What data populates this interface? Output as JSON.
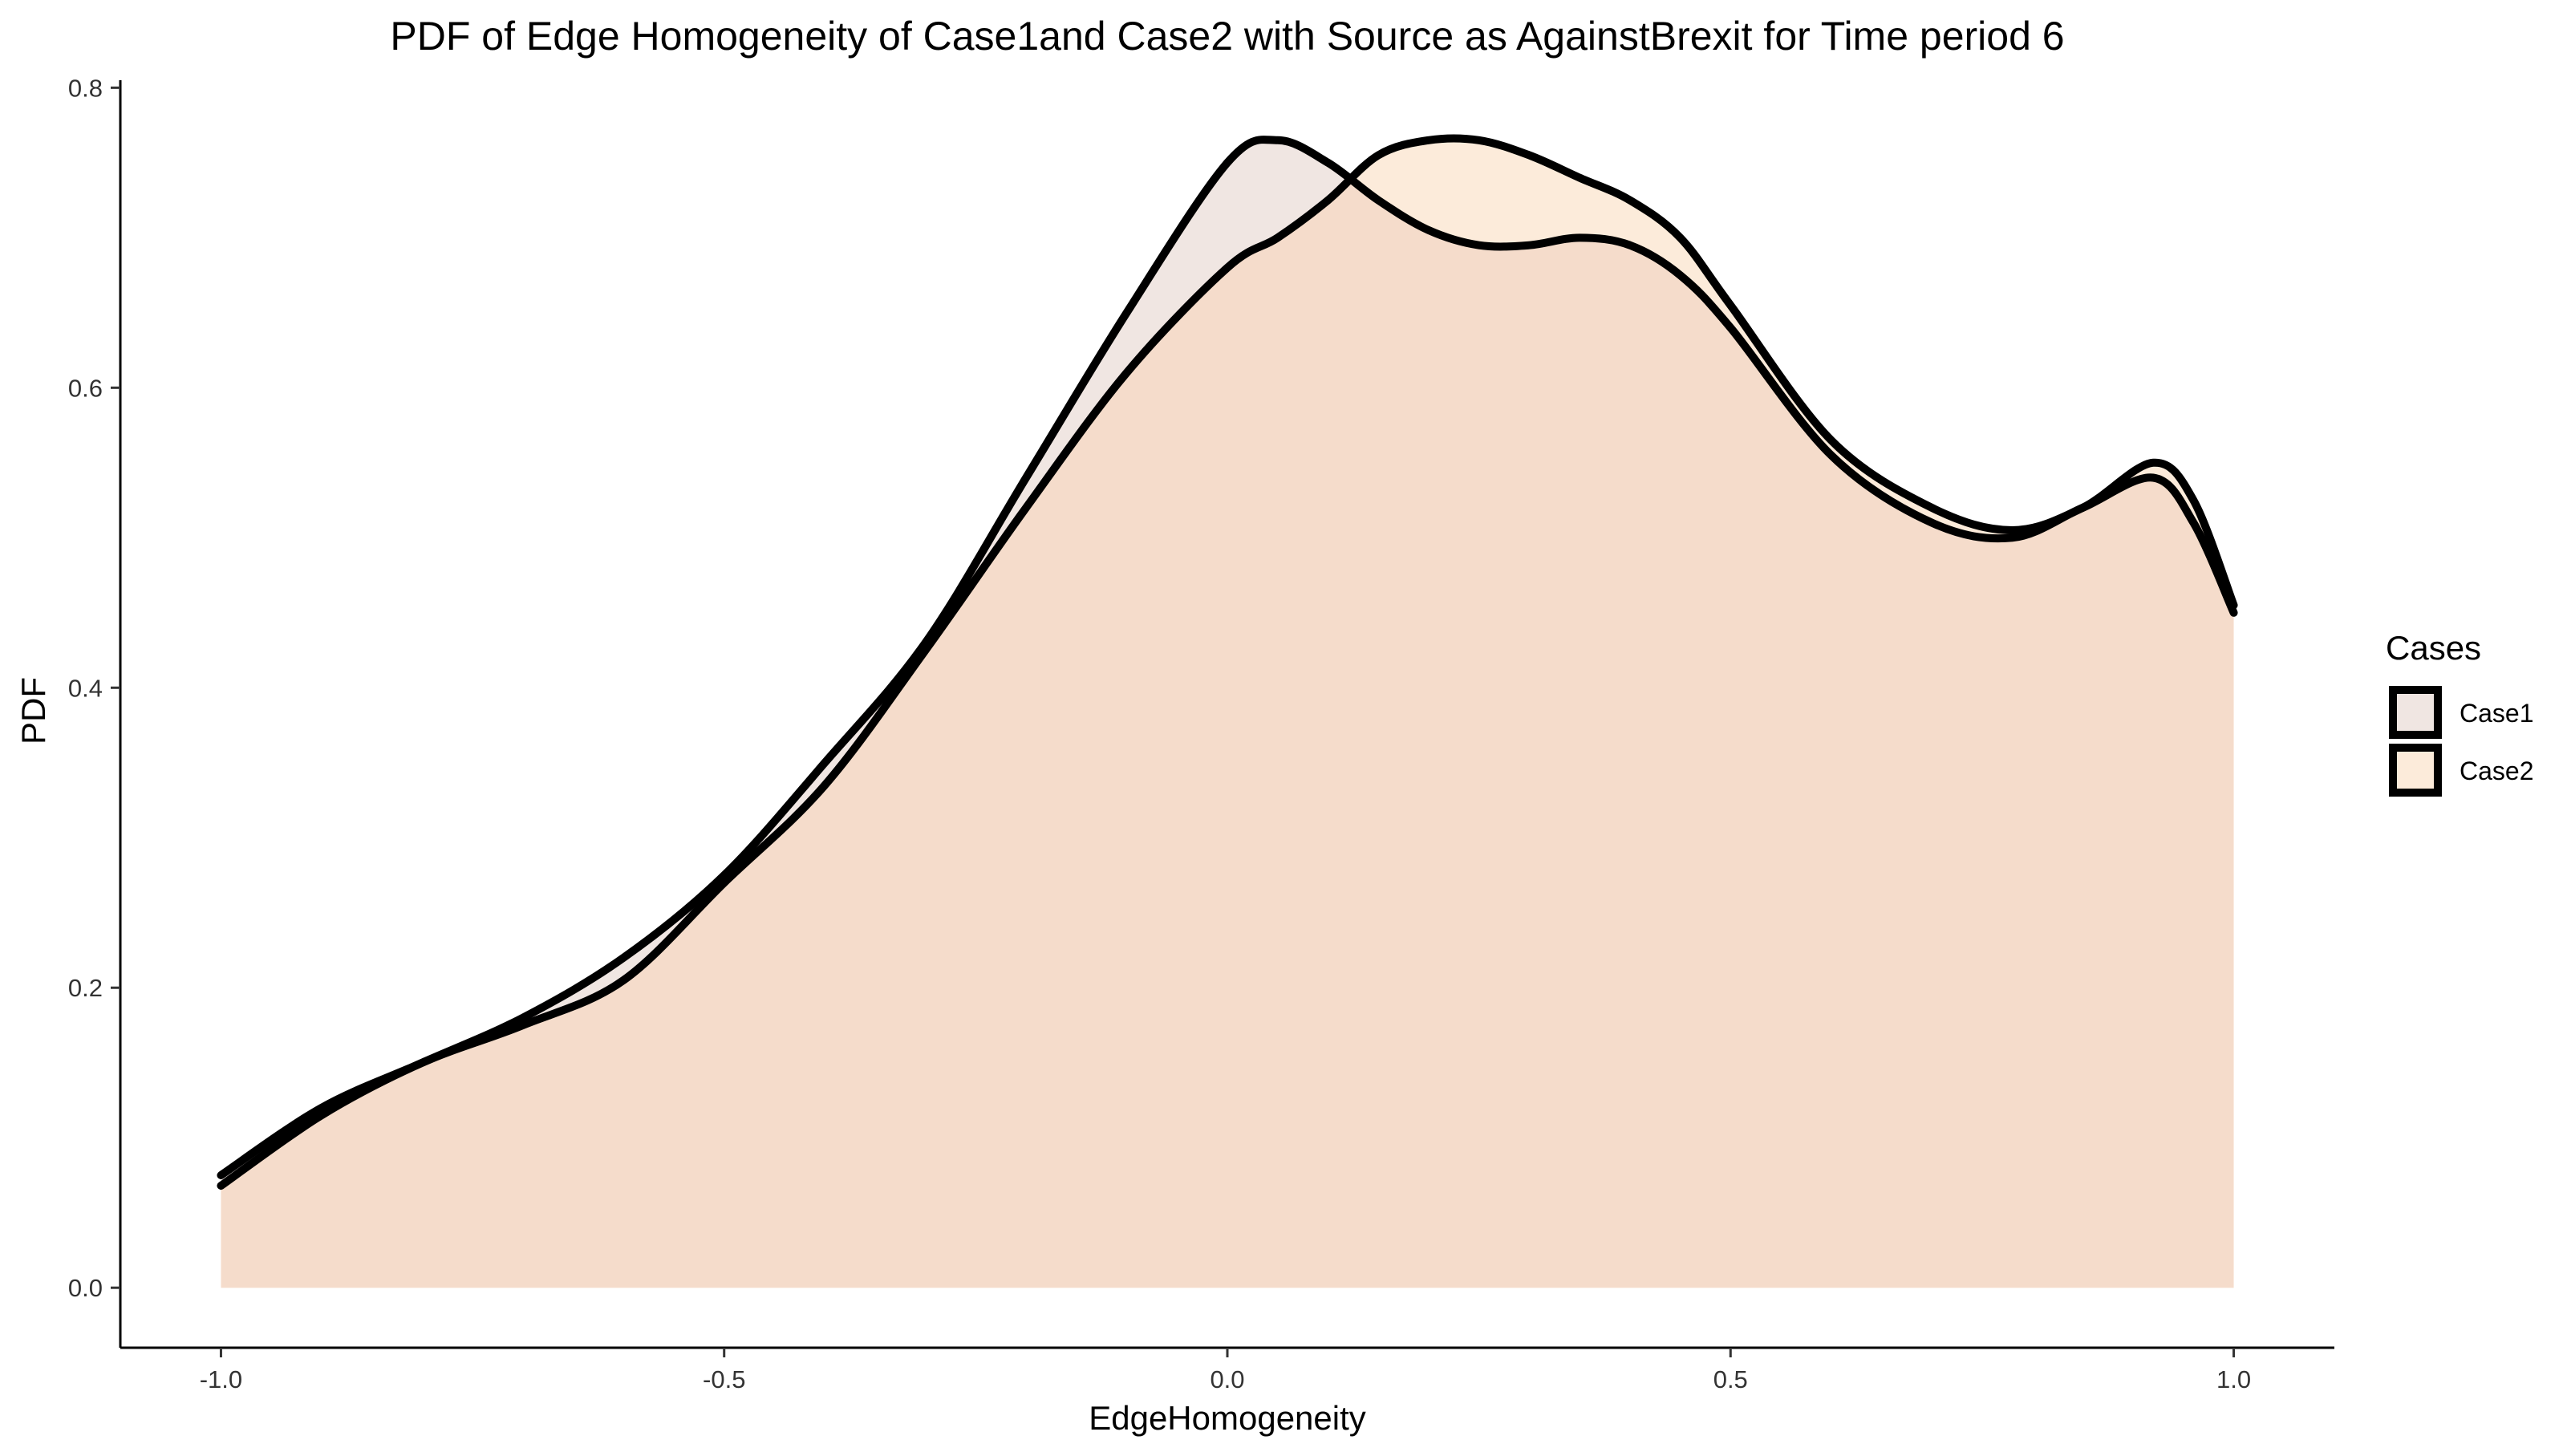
{
  "chart_data": {
    "type": "area",
    "title": "PDF of Edge Homogeneity of Case1and Case2 with Source as AgainstBrexit for Time period 6",
    "xlabel": "EdgeHomogeneity",
    "ylabel": "PDF",
    "xlim": [
      -1.1,
      1.1
    ],
    "ylim": [
      -0.04,
      0.805
    ],
    "xticks": [
      -1.0,
      -0.5,
      0.0,
      0.5,
      1.0
    ],
    "xtick_labels": [
      "-1.0",
      "-0.5",
      "0.0",
      "0.5",
      "1.0"
    ],
    "yticks": [
      0.0,
      0.2,
      0.4,
      0.6,
      0.8
    ],
    "ytick_labels": [
      "0.0",
      "0.2",
      "0.4",
      "0.6",
      "0.8"
    ],
    "grid": false,
    "legend": {
      "title": "Cases",
      "position": "right"
    },
    "x": [
      -1.0,
      -0.9,
      -0.8,
      -0.7,
      -0.6,
      -0.5,
      -0.4,
      -0.3,
      -0.2,
      -0.1,
      0.0,
      0.05,
      0.1,
      0.15,
      0.2,
      0.25,
      0.3,
      0.35,
      0.4,
      0.45,
      0.5,
      0.6,
      0.7,
      0.78,
      0.85,
      0.92,
      0.96,
      1.0
    ],
    "series": [
      {
        "name": "Case1",
        "fill": "#F0E6E2",
        "values": [
          0.075,
          0.12,
          0.15,
          0.18,
          0.22,
          0.275,
          0.35,
          0.43,
          0.54,
          0.65,
          0.75,
          0.765,
          0.75,
          0.725,
          0.705,
          0.695,
          0.695,
          0.7,
          0.695,
          0.675,
          0.64,
          0.555,
          0.51,
          0.5,
          0.52,
          0.54,
          0.51,
          0.45
        ]
      },
      {
        "name": "Case2",
        "fill": "#FCEBDA",
        "values": [
          0.068,
          0.115,
          0.15,
          0.175,
          0.205,
          0.27,
          0.335,
          0.425,
          0.52,
          0.61,
          0.68,
          0.7,
          0.725,
          0.755,
          0.765,
          0.765,
          0.755,
          0.74,
          0.725,
          0.7,
          0.655,
          0.565,
          0.52,
          0.505,
          0.52,
          0.55,
          0.525,
          0.455
        ]
      }
    ],
    "overlap_fill": "#F5DCCB",
    "line_color": "#000000"
  }
}
